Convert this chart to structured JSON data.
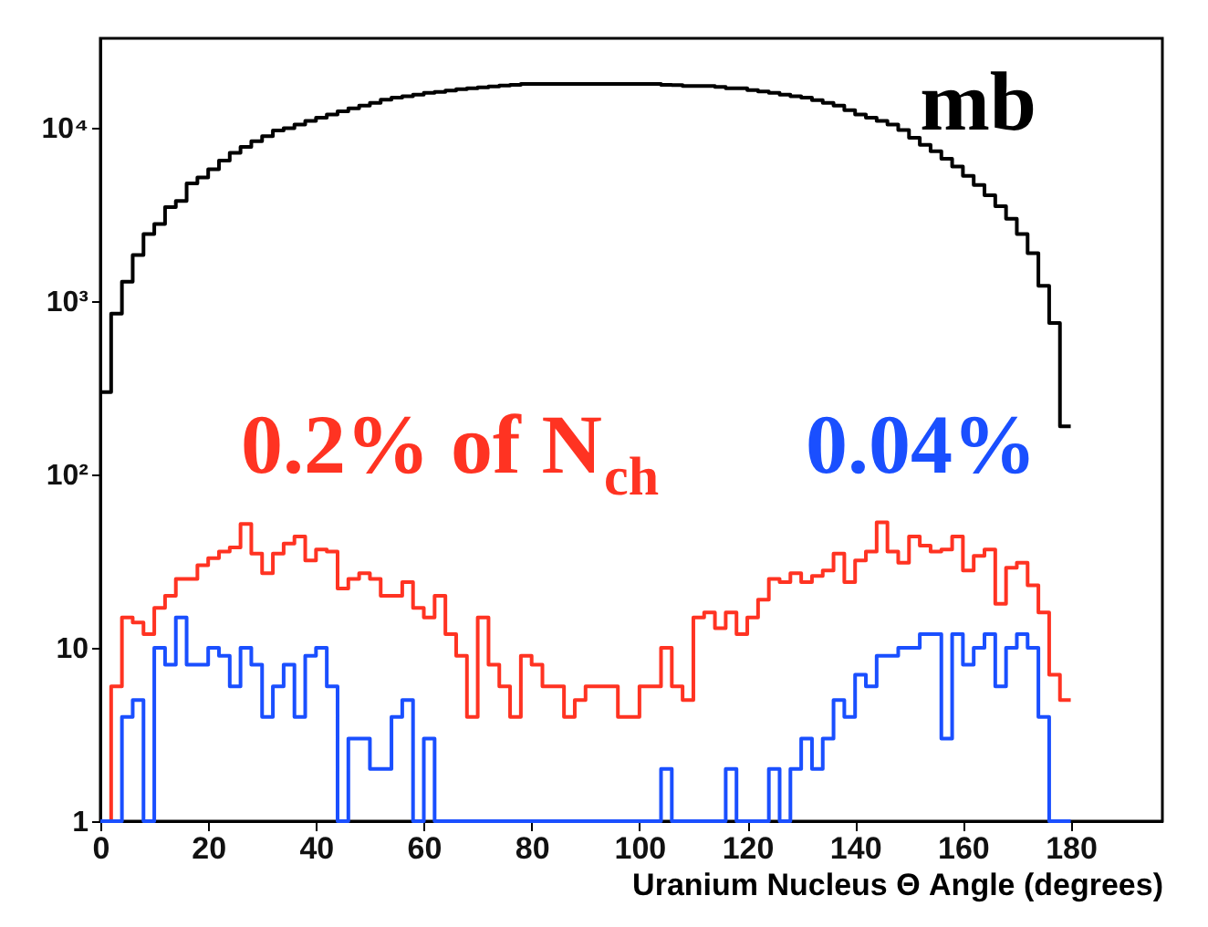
{
  "chart_data": {
    "type": "histogram",
    "xlabel": "Uranium Nucleus Θ Angle (degrees)",
    "bins": [
      0,
      2,
      4,
      6,
      8,
      10,
      12,
      14,
      16,
      18,
      20,
      22,
      24,
      26,
      28,
      30,
      32,
      34,
      36,
      38,
      40,
      42,
      44,
      46,
      48,
      50,
      52,
      54,
      56,
      58,
      60,
      62,
      64,
      66,
      68,
      70,
      72,
      74,
      76,
      78,
      80,
      82,
      84,
      86,
      88,
      90,
      92,
      94,
      96,
      98,
      100,
      102,
      104,
      106,
      108,
      110,
      112,
      114,
      116,
      118,
      120,
      122,
      124,
      126,
      128,
      130,
      132,
      134,
      136,
      138,
      140,
      142,
      144,
      146,
      148,
      150,
      152,
      154,
      156,
      158,
      160,
      162,
      164,
      166,
      168,
      170,
      172,
      174,
      176,
      178,
      180
    ],
    "series": [
      {
        "name": "mb",
        "color": "#000000",
        "values": [
          300,
          850,
          1300,
          1850,
          2450,
          2800,
          3500,
          3800,
          4800,
          5200,
          5800,
          6500,
          7200,
          7800,
          8400,
          9000,
          9700,
          10000,
          10500,
          11000,
          11500,
          12000,
          12500,
          13000,
          13500,
          14000,
          14600,
          15000,
          15300,
          15600,
          16000,
          16200,
          16500,
          16800,
          17000,
          17200,
          17400,
          17600,
          17800,
          18000,
          18000,
          18000,
          18000,
          18000,
          18000,
          18000,
          18000,
          18000,
          18000,
          18000,
          18000,
          18000,
          17800,
          17700,
          17500,
          17500,
          17500,
          17300,
          17000,
          17000,
          16600,
          16300,
          16000,
          15600,
          15300,
          15000,
          14500,
          14000,
          13500,
          12700,
          12000,
          11500,
          11000,
          10500,
          9760,
          8800,
          8000,
          7350,
          6660,
          6000,
          5300,
          4700,
          4100,
          3540,
          3000,
          2450,
          1900,
          1230,
          750,
          190
        ]
      },
      {
        "name": "0.2% of N$_{ch}$",
        "color": "#ff3322",
        "values": [
          1,
          6,
          15,
          14,
          12,
          17,
          20,
          25,
          25,
          30,
          33,
          36,
          38,
          52,
          35,
          27,
          35,
          40,
          44,
          32,
          37,
          36,
          22,
          25,
          27,
          25,
          20,
          20,
          24,
          17,
          15,
          20,
          12,
          9,
          4,
          15,
          8,
          6,
          4,
          9,
          8,
          6,
          6,
          4,
          5,
          6,
          6,
          6,
          4,
          4,
          6,
          6,
          10,
          6,
          5,
          15,
          16,
          13,
          16,
          12,
          15,
          19,
          25,
          24,
          27,
          24,
          26,
          28,
          35,
          24,
          32,
          36,
          53,
          36,
          31,
          44,
          39,
          36,
          37,
          44,
          28,
          34,
          37,
          18,
          29,
          31,
          23,
          16,
          7,
          5
        ]
      },
      {
        "name": "0.04%",
        "color": "#1a4fff",
        "values": [
          1,
          1,
          4,
          5,
          1,
          10,
          8,
          15,
          8,
          8,
          10,
          9,
          6,
          10,
          8,
          4,
          6,
          8,
          4,
          9,
          10,
          6,
          1,
          3,
          3,
          2,
          2,
          4,
          5,
          1,
          3,
          1,
          1,
          1,
          1,
          1,
          1,
          1,
          1,
          1,
          1,
          1,
          1,
          1,
          1,
          1,
          1,
          1,
          1,
          1,
          1,
          1,
          2,
          1,
          1,
          1,
          1,
          1,
          2,
          1,
          1,
          1,
          2,
          1,
          2,
          3,
          2,
          3,
          5,
          4,
          7,
          6,
          9,
          9,
          10,
          10,
          12,
          12,
          3,
          12,
          8,
          10,
          12,
          6,
          10,
          12,
          10,
          4,
          1,
          1
        ]
      }
    ],
    "xlim": [
      0,
      197
    ],
    "xticks": [
      0,
      20,
      40,
      60,
      80,
      100,
      120,
      140,
      160,
      180
    ],
    "ylim": [
      1,
      33000
    ],
    "yticks": [
      1,
      10,
      {
        "value": 100,
        "label": "10²"
      },
      {
        "value": 1000,
        "label": "10³"
      },
      {
        "value": 10000,
        "label": "10⁴"
      }
    ],
    "log": true,
    "grid": false
  }
}
